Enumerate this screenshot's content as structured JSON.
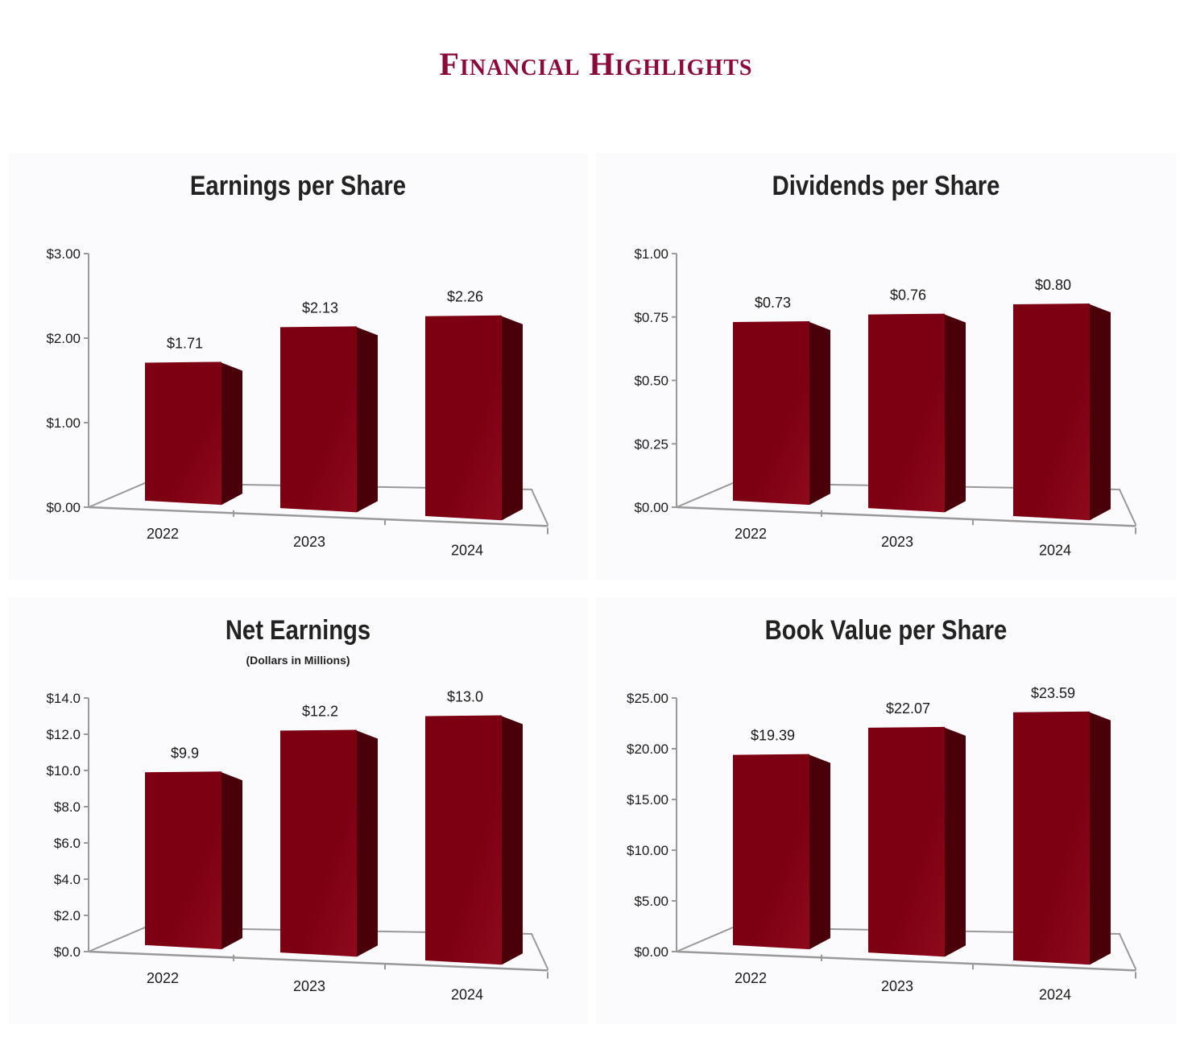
{
  "page": {
    "title": "Financial Highlights"
  },
  "colors": {
    "bar_front": "#7c0012",
    "bar_side": "#4a0008",
    "bar_top": "#8e0a1c",
    "axis": "#999999"
  },
  "chart_data": [
    {
      "type": "bar",
      "title": "Earnings per Share",
      "subtitle": "",
      "categories": [
        "2022",
        "2023",
        "2024"
      ],
      "values": [
        1.71,
        2.13,
        2.26
      ],
      "data_labels": [
        "$1.71",
        "$2.13",
        "$2.26"
      ],
      "yticks": [
        "$0.00",
        "$1.00",
        "$2.00",
        "$3.00"
      ],
      "ylim": [
        0,
        3
      ]
    },
    {
      "type": "bar",
      "title": "Dividends per Share",
      "subtitle": "",
      "categories": [
        "2022",
        "2023",
        "2024"
      ],
      "values": [
        0.73,
        0.76,
        0.8
      ],
      "data_labels": [
        "$0.73",
        "$0.76",
        "$0.80"
      ],
      "yticks": [
        "$0.00",
        "$0.25",
        "$0.50",
        "$0.75",
        "$1.00"
      ],
      "ylim": [
        0,
        1
      ]
    },
    {
      "type": "bar",
      "title": "Net Earnings",
      "subtitle": "(Dollars in Millions)",
      "categories": [
        "2022",
        "2023",
        "2024"
      ],
      "values": [
        9.9,
        12.2,
        13.0
      ],
      "data_labels": [
        "$9.9",
        "$12.2",
        "$13.0"
      ],
      "yticks": [
        "$0.0",
        "$2.0",
        "$4.0",
        "$6.0",
        "$8.0",
        "$10.0",
        "$12.0",
        "$14.0"
      ],
      "ylim": [
        0,
        14
      ]
    },
    {
      "type": "bar",
      "title": "Book Value per Share",
      "subtitle": "",
      "categories": [
        "2022",
        "2023",
        "2024"
      ],
      "values": [
        19.39,
        22.07,
        23.59
      ],
      "data_labels": [
        "$19.39",
        "$22.07",
        "$23.59"
      ],
      "yticks": [
        "$0.00",
        "$5.00",
        "$10.00",
        "$15.00",
        "$20.00",
        "$25.00"
      ],
      "ylim": [
        0,
        25
      ]
    }
  ]
}
